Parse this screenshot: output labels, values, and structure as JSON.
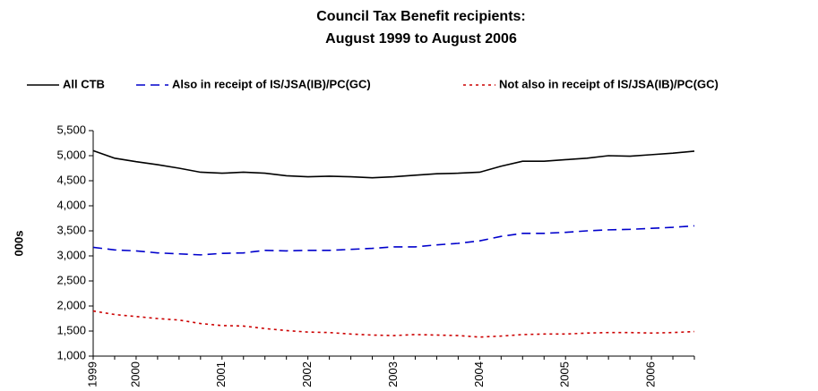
{
  "chart_data": {
    "type": "line",
    "title": [
      "Council Tax Benefit recipients:",
      "August 1999 to August 2006"
    ],
    "ylabel": "000s",
    "categories": [
      "1999",
      null,
      "2000",
      null,
      null,
      null,
      "2001",
      null,
      null,
      null,
      "2002",
      null,
      null,
      null,
      "2003",
      null,
      null,
      null,
      "2004",
      null,
      null,
      null,
      "2005",
      null,
      null,
      null,
      "2006",
      null,
      null
    ],
    "series": [
      {
        "name": "All CTB",
        "color": "#000000",
        "dash": "solid",
        "values": [
          5100,
          4950,
          4880,
          4820,
          4750,
          4670,
          4650,
          4670,
          4650,
          4600,
          4580,
          4590,
          4580,
          4560,
          4580,
          4610,
          4640,
          4650,
          4670,
          4790,
          4890,
          4890,
          4920,
          4950,
          5000,
          4990,
          5020,
          5050,
          5090
        ]
      },
      {
        "name": "Also in receipt of IS/JSA(IB)/PC(GC)",
        "color": "#0000cc",
        "dash": "dashed",
        "values": [
          3170,
          3120,
          3100,
          3060,
          3040,
          3020,
          3050,
          3060,
          3110,
          3100,
          3110,
          3110,
          3130,
          3150,
          3180,
          3180,
          3220,
          3250,
          3300,
          3390,
          3450,
          3450,
          3470,
          3500,
          3520,
          3530,
          3550,
          3570,
          3600
        ]
      },
      {
        "name": "Not also in receipt of IS/JSA(IB)/PC(GC)",
        "color": "#cc0000",
        "dash": "dotted",
        "values": [
          1900,
          1830,
          1790,
          1750,
          1720,
          1650,
          1610,
          1600,
          1550,
          1510,
          1480,
          1470,
          1440,
          1420,
          1410,
          1430,
          1420,
          1410,
          1380,
          1400,
          1430,
          1440,
          1440,
          1460,
          1470,
          1470,
          1460,
          1470,
          1490
        ]
      }
    ],
    "ylim": [
      1000,
      5500
    ],
    "yticks": [
      {
        "value": 1000,
        "label": "1,000"
      },
      {
        "value": 1500,
        "label": "1,500"
      },
      {
        "value": 2000,
        "label": "2,000"
      },
      {
        "value": 2500,
        "label": "2,500"
      },
      {
        "value": 3000,
        "label": "3,000"
      },
      {
        "value": 3500,
        "label": "3,500"
      },
      {
        "value": 4000,
        "label": "4,000"
      },
      {
        "value": 4500,
        "label": "4,500"
      },
      {
        "value": 5000,
        "label": "5,000"
      },
      {
        "value": 5500,
        "label": "5,500"
      }
    ],
    "grid": false,
    "legend": "top"
  }
}
